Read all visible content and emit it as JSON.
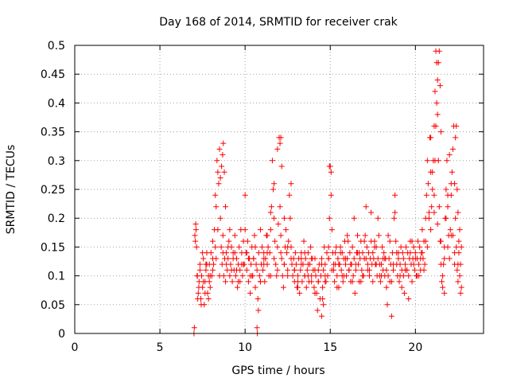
{
  "chart_data": {
    "type": "scatter",
    "title": "Day 168 of 2014, SRMTID for receiver crak",
    "xlabel": "GPS time / hours",
    "ylabel": "SRMTID / TECUs",
    "xlim": [
      0,
      24
    ],
    "ylim": [
      0,
      0.5
    ],
    "x_ticks": [
      0,
      5,
      10,
      15,
      20
    ],
    "x_tick_labels": [
      "0",
      "5",
      "10",
      "15",
      "20"
    ],
    "y_ticks": [
      0,
      0.05,
      0.1,
      0.15,
      0.2,
      0.25,
      0.3,
      0.35,
      0.4,
      0.45,
      0.5
    ],
    "y_tick_labels": [
      "0",
      "0.05",
      "0.1",
      "0.15",
      "0.2",
      "0.25",
      "0.3",
      "0.35",
      "0.4",
      "0.45",
      "0.5"
    ],
    "grid": true,
    "marker": "plus",
    "color": "#ff0000",
    "x": [
      7.0,
      7.05,
      7.1,
      7.15,
      7.2,
      7.25,
      7.3,
      7.35,
      7.4,
      7.45,
      7.5,
      7.55,
      7.6,
      7.65,
      7.7,
      7.75,
      7.8,
      7.85,
      7.9,
      7.95,
      8.0,
      8.05,
      8.1,
      8.15,
      8.2,
      8.25,
      8.3,
      8.35,
      8.4,
      8.45,
      8.5,
      8.55,
      8.6,
      8.65,
      8.7,
      8.75,
      8.8,
      8.85,
      8.9,
      8.95,
      9.0,
      9.05,
      9.1,
      9.15,
      9.2,
      9.25,
      9.3,
      9.35,
      9.4,
      9.45,
      9.5,
      9.55,
      9.6,
      9.65,
      9.7,
      9.75,
      9.8,
      9.85,
      9.9,
      9.95,
      10.0,
      10.05,
      10.1,
      10.15,
      10.2,
      10.25,
      10.3,
      10.35,
      10.4,
      10.45,
      10.5,
      10.55,
      10.6,
      10.65,
      10.7,
      10.75,
      10.8,
      10.85,
      10.9,
      10.95,
      11.0,
      11.05,
      11.1,
      11.15,
      11.2,
      11.25,
      11.3,
      11.35,
      11.4,
      11.45,
      11.5,
      11.55,
      11.6,
      11.65,
      11.7,
      11.75,
      11.8,
      11.85,
      11.9,
      11.95,
      12.0,
      12.05,
      12.1,
      12.15,
      12.2,
      12.25,
      12.3,
      12.35,
      12.4,
      12.45,
      12.5,
      12.55,
      12.6,
      12.65,
      12.7,
      12.75,
      12.8,
      12.85,
      12.9,
      12.95,
      13.0,
      13.05,
      13.1,
      13.15,
      13.2,
      13.25,
      13.3,
      13.35,
      13.4,
      13.45,
      13.5,
      13.55,
      13.6,
      13.65,
      13.7,
      13.75,
      13.8,
      13.85,
      13.9,
      13.95,
      14.0,
      14.05,
      14.1,
      14.15,
      14.2,
      14.25,
      14.3,
      14.35,
      14.4,
      14.45,
      14.5,
      14.55,
      14.6,
      14.65,
      14.7,
      14.75,
      14.8,
      14.85,
      14.9,
      14.95,
      15.0,
      15.05,
      15.1,
      15.15,
      15.2,
      15.25,
      15.3,
      15.35,
      15.4,
      15.45,
      15.5,
      15.55,
      15.6,
      15.65,
      15.7,
      15.75,
      15.8,
      15.85,
      15.9,
      15.95,
      16.0,
      16.05,
      16.1,
      16.15,
      16.2,
      16.25,
      16.3,
      16.35,
      16.4,
      16.45,
      16.5,
      16.55,
      16.6,
      16.65,
      16.7,
      16.75,
      16.8,
      16.85,
      16.9,
      16.95,
      17.0,
      17.05,
      17.1,
      17.15,
      17.2,
      17.25,
      17.3,
      17.35,
      17.4,
      17.45,
      17.5,
      17.55,
      17.6,
      17.65,
      17.7,
      17.75,
      17.8,
      17.85,
      17.9,
      17.95,
      18.0,
      18.05,
      18.1,
      18.15,
      18.2,
      18.25,
      18.3,
      18.35,
      18.4,
      18.45,
      18.5,
      18.55,
      18.6,
      18.65,
      18.7,
      18.75,
      18.8,
      18.85,
      18.9,
      18.95,
      19.0,
      19.05,
      19.1,
      19.15,
      19.2,
      19.25,
      19.3,
      19.35,
      19.4,
      19.45,
      19.5,
      19.55,
      19.6,
      19.65,
      19.7,
      19.75,
      19.8,
      19.85,
      19.9,
      19.95,
      20.0,
      20.05,
      20.1,
      20.15,
      20.2,
      20.25,
      20.3,
      20.35,
      20.4,
      20.45,
      20.5,
      20.55,
      20.6,
      20.65,
      20.7,
      20.75,
      20.8,
      20.85,
      20.9,
      20.95,
      21.0,
      21.05,
      21.1,
      21.15,
      21.2,
      21.25,
      21.3,
      21.35,
      21.4,
      21.45,
      21.5,
      21.55,
      21.6,
      21.65,
      21.7,
      21.75,
      21.8,
      21.85,
      21.9,
      21.95,
      22.0,
      22.05,
      22.1,
      22.15,
      22.2,
      22.25,
      22.3,
      22.35,
      22.4,
      22.45,
      22.5,
      22.55,
      22.6,
      22.65,
      22.7,
      7.02,
      7.08,
      7.12,
      7.18,
      7.22,
      7.28,
      7.35,
      7.42,
      7.55,
      7.65,
      7.75,
      7.85,
      7.95,
      8.1,
      8.25,
      8.4,
      8.55,
      8.62,
      8.68,
      8.72,
      8.78,
      8.85,
      9.0,
      9.2,
      9.4,
      9.6,
      9.8,
      10.0,
      10.2,
      10.4,
      10.6,
      10.72,
      10.78,
      10.9,
      11.1,
      11.3,
      11.5,
      11.7,
      11.9,
      12.05,
      12.1,
      12.15,
      12.3,
      12.5,
      12.7,
      12.9,
      13.1,
      13.3,
      13.5,
      13.7,
      13.9,
      14.1,
      14.3,
      14.5,
      14.55,
      14.6,
      14.7,
      14.9,
      14.95,
      15.05,
      15.2,
      15.4,
      15.6,
      15.8,
      16.0,
      16.2,
      16.4,
      16.6,
      16.8,
      17.0,
      17.2,
      17.4,
      17.6,
      17.8,
      18.0,
      18.2,
      18.4,
      18.6,
      18.8,
      19.0,
      19.2,
      19.4,
      19.6,
      19.8,
      20.0,
      20.2,
      20.4,
      20.6,
      20.8,
      20.9,
      21.0,
      21.1,
      21.15,
      21.2,
      21.25,
      21.3,
      21.35,
      21.4,
      21.45,
      21.5,
      21.6,
      21.7,
      21.8,
      21.9,
      22.0,
      22.1,
      22.2,
      22.3,
      22.35,
      22.4,
      22.45,
      22.5,
      22.55,
      22.6,
      22.65,
      7.5,
      7.7,
      7.9,
      8.1,
      8.3,
      8.5,
      8.7,
      8.9,
      9.1,
      9.3,
      9.5,
      9.7,
      9.9,
      10.1,
      10.3,
      10.5,
      10.7,
      10.9,
      11.1,
      11.3,
      11.5,
      11.7,
      11.9,
      12.1,
      12.3,
      12.5,
      12.7,
      12.9,
      13.1,
      13.3,
      13.5,
      13.7,
      13.9,
      14.1,
      14.3,
      14.5,
      14.7,
      14.9,
      15.1,
      15.3,
      15.5,
      15.7,
      15.9,
      16.1,
      16.3,
      16.5,
      16.7,
      16.9,
      17.1,
      17.3,
      17.5,
      17.7,
      17.9,
      18.1,
      18.3,
      18.5,
      18.7,
      18.9,
      19.1,
      19.3,
      19.5,
      19.7,
      19.9,
      20.1,
      20.3,
      20.5,
      20.7,
      20.9,
      21.1,
      21.3,
      21.5,
      21.7,
      21.9,
      22.1,
      22.3,
      22.5,
      22.7
    ],
    "y": [
      0.0,
      0.17,
      0.19,
      0.15,
      0.1,
      0.07,
      0.09,
      0.12,
      0.06,
      0.1,
      0.08,
      0.13,
      0.05,
      0.09,
      0.11,
      0.14,
      0.07,
      0.1,
      0.12,
      0.08,
      0.14,
      0.1,
      0.16,
      0.12,
      0.18,
      0.24,
      0.22,
      0.3,
      0.28,
      0.26,
      0.32,
      0.2,
      0.15,
      0.12,
      0.17,
      0.1,
      0.13,
      0.09,
      0.14,
      0.11,
      0.13,
      0.16,
      0.18,
      0.12,
      0.15,
      0.09,
      0.14,
      0.11,
      0.17,
      0.1,
      0.13,
      0.08,
      0.12,
      0.15,
      0.11,
      0.18,
      0.14,
      0.1,
      0.16,
      0.12,
      0.24,
      0.14,
      0.11,
      0.16,
      0.09,
      0.13,
      0.07,
      0.12,
      0.15,
      0.1,
      0.13,
      0.17,
      0.08,
      0.12,
      0.01,
      0.06,
      0.14,
      0.1,
      0.18,
      0.12,
      0.15,
      0.11,
      0.14,
      0.09,
      0.13,
      0.17,
      0.12,
      0.15,
      0.1,
      0.14,
      0.18,
      0.22,
      0.3,
      0.25,
      0.2,
      0.16,
      0.12,
      0.1,
      0.15,
      0.19,
      0.34,
      0.22,
      0.17,
      0.13,
      0.1,
      0.08,
      0.12,
      0.15,
      0.18,
      0.14,
      0.11,
      0.16,
      0.24,
      0.2,
      0.15,
      0.12,
      0.1,
      0.13,
      0.09,
      0.14,
      0.12,
      0.08,
      0.1,
      0.13,
      0.07,
      0.11,
      0.14,
      0.09,
      0.12,
      0.16,
      0.1,
      0.13,
      0.08,
      0.11,
      0.14,
      0.09,
      0.12,
      0.15,
      0.1,
      0.13,
      0.11,
      0.08,
      0.13,
      0.1,
      0.07,
      0.04,
      0.09,
      0.12,
      0.06,
      0.1,
      0.13,
      0.08,
      0.11,
      0.15,
      0.12,
      0.09,
      0.14,
      0.1,
      0.13,
      0.2,
      0.29,
      0.24,
      0.18,
      0.14,
      0.11,
      0.09,
      0.12,
      0.15,
      0.1,
      0.13,
      0.08,
      0.12,
      0.15,
      0.11,
      0.14,
      0.09,
      0.13,
      0.16,
      0.12,
      0.1,
      0.13,
      0.16,
      0.11,
      0.14,
      0.09,
      0.12,
      0.15,
      0.1,
      0.13,
      0.07,
      0.11,
      0.14,
      0.17,
      0.12,
      0.09,
      0.13,
      0.16,
      0.11,
      0.14,
      0.1,
      0.13,
      0.17,
      0.22,
      0.15,
      0.11,
      0.14,
      0.1,
      0.13,
      0.16,
      0.12,
      0.09,
      0.13,
      0.16,
      0.12,
      0.15,
      0.1,
      0.13,
      0.17,
      0.12,
      0.09,
      0.12,
      0.15,
      0.11,
      0.14,
      0.1,
      0.13,
      0.08,
      0.05,
      0.1,
      0.13,
      0.16,
      0.12,
      0.09,
      0.14,
      0.11,
      0.2,
      0.24,
      0.16,
      0.12,
      0.1,
      0.13,
      0.09,
      0.12,
      0.15,
      0.11,
      0.14,
      0.1,
      0.07,
      0.12,
      0.15,
      0.11,
      0.14,
      0.1,
      0.13,
      0.16,
      0.12,
      0.09,
      0.13,
      0.15,
      0.11,
      0.14,
      0.1,
      0.13,
      0.16,
      0.12,
      0.15,
      0.11,
      0.14,
      0.18,
      0.13,
      0.16,
      0.12,
      0.2,
      0.24,
      0.3,
      0.26,
      0.2,
      0.34,
      0.28,
      0.22,
      0.25,
      0.3,
      0.36,
      0.42,
      0.49,
      0.47,
      0.38,
      0.3,
      0.22,
      0.16,
      0.12,
      0.09,
      0.08,
      0.12,
      0.15,
      0.2,
      0.25,
      0.3,
      0.22,
      0.17,
      0.13,
      0.18,
      0.24,
      0.28,
      0.32,
      0.36,
      0.26,
      0.2,
      0.15,
      0.11,
      0.09,
      0.14,
      0.18,
      0.12,
      0.08,
      0.01,
      0.16,
      0.18,
      0.1,
      0.06,
      0.08,
      0.11,
      0.05,
      0.09,
      0.07,
      0.12,
      0.06,
      0.1,
      0.13,
      0.15,
      0.18,
      0.27,
      0.29,
      0.31,
      0.33,
      0.28,
      0.22,
      0.15,
      0.11,
      0.14,
      0.09,
      0.12,
      0.18,
      0.13,
      0.1,
      0.15,
      0.0,
      0.04,
      0.09,
      0.13,
      0.17,
      0.21,
      0.26,
      0.32,
      0.33,
      0.34,
      0.29,
      0.2,
      0.15,
      0.26,
      0.11,
      0.08,
      0.13,
      0.1,
      0.12,
      0.09,
      0.07,
      0.11,
      0.03,
      0.06,
      0.05,
      0.09,
      0.15,
      0.29,
      0.28,
      0.12,
      0.08,
      0.14,
      0.1,
      0.17,
      0.12,
      0.2,
      0.14,
      0.09,
      0.16,
      0.12,
      0.21,
      0.15,
      0.2,
      0.1,
      0.13,
      0.17,
      0.03,
      0.21,
      0.14,
      0.08,
      0.11,
      0.06,
      0.16,
      0.13,
      0.1,
      0.14,
      0.16,
      0.21,
      0.34,
      0.28,
      0.24,
      0.3,
      0.36,
      0.4,
      0.44,
      0.47,
      0.49,
      0.43,
      0.35,
      0.1,
      0.07,
      0.2,
      0.24,
      0.31,
      0.26,
      0.17,
      0.12,
      0.34,
      0.36,
      0.25,
      0.21,
      0.16,
      0.1,
      0.07,
      0.14,
      0.12,
      0.09,
      0.11,
      0.13,
      0.1,
      0.14,
      0.12,
      0.1,
      0.13,
      0.11,
      0.09,
      0.12,
      0.14,
      0.1,
      0.13,
      0.11,
      0.09,
      0.12,
      0.14,
      0.1,
      0.13,
      0.11,
      0.14,
      0.12,
      0.1,
      0.13,
      0.11,
      0.09,
      0.12,
      0.14,
      0.1,
      0.13,
      0.11,
      0.09,
      0.12,
      0.1,
      0.13,
      0.11,
      0.14,
      0.12,
      0.1,
      0.13,
      0.11,
      0.09,
      0.12,
      0.14,
      0.1,
      0.13,
      0.11,
      0.14,
      0.12,
      0.1,
      0.13,
      0.11,
      0.09,
      0.12,
      0.14,
      0.1,
      0.13,
      0.11,
      0.14,
      0.12,
      0.1,
      0.13,
      0.11,
      0.15,
      0.18,
      0.21,
      0.19,
      0.16,
      0.13,
      0.15,
      0.17,
      0.14,
      0.12,
      0.15
    ]
  }
}
